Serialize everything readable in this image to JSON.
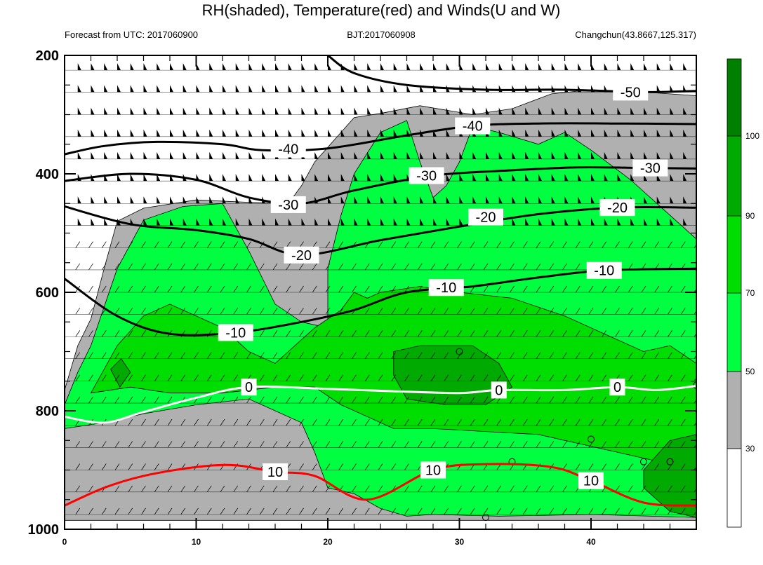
{
  "title": "RH(shaded), Temperature(red) and Winds(U and W)",
  "subtitle_left": "Forecast from UTC: 2017060900",
  "subtitle_center": "BJT:2017060908",
  "subtitle_right": "Changchun(43.8667,125.317)",
  "colors": {
    "rh_30_50": "#b0b0b0",
    "rh_50_70": "#00ff40",
    "rh_70_90": "#00dd00",
    "rh_90_100": "#00aa00",
    "rh_100_plus": "#008000",
    "temperature_below_zero": "#000000",
    "zero_line": "#ffffff",
    "temperature_above_zero": "#ff0000"
  },
  "chart_data": {
    "type": "contour",
    "x_axis": {
      "ticks": [
        0,
        10,
        20,
        30,
        40
      ],
      "range": [
        0,
        48
      ]
    },
    "y_axis": {
      "ticks": [
        "200",
        "400",
        "600",
        "800",
        "1000"
      ],
      "range": [
        200,
        1000
      ],
      "inverted": true
    },
    "colorbar": {
      "ticks": [
        "30",
        "50",
        "70",
        "90",
        "100"
      ]
    },
    "temperature_contours": [
      {
        "value": -50,
        "label": "-50",
        "label_pos": [
          43,
          262
        ],
        "points": [
          [
            20,
            200
          ],
          [
            22,
            230
          ],
          [
            26,
            250
          ],
          [
            32,
            258
          ],
          [
            38,
            258
          ],
          [
            44,
            262
          ],
          [
            48,
            260
          ]
        ]
      },
      {
        "value": -40,
        "label": "-40",
        "label_pos": [
          17,
          358
        ],
        "label2": "-40",
        "label2_pos": [
          31,
          319
        ],
        "points": [
          [
            0,
            367
          ],
          [
            3,
            353
          ],
          [
            7,
            346
          ],
          [
            12,
            350
          ],
          [
            15,
            360
          ],
          [
            20,
            357
          ],
          [
            26,
            335
          ],
          [
            31,
            319
          ],
          [
            36,
            315
          ],
          [
            42,
            315
          ],
          [
            48,
            316
          ]
        ]
      },
      {
        "value": -30,
        "label": "-30",
        "label_pos": [
          17,
          452
        ],
        "label2": "-30",
        "label2_pos": [
          27.5,
          403
        ],
        "label3": "-30",
        "label3_pos": [
          44.5,
          390
        ],
        "points": [
          [
            0,
            412
          ],
          [
            5,
            400
          ],
          [
            10,
            410
          ],
          [
            14,
            440
          ],
          [
            18,
            450
          ],
          [
            22,
            428
          ],
          [
            28,
            403
          ],
          [
            34,
            394
          ],
          [
            39,
            389
          ],
          [
            44,
            390
          ],
          [
            48,
            391
          ]
        ]
      },
      {
        "value": -20,
        "label": "-20",
        "label_pos": [
          18,
          537
        ],
        "label2": "-20",
        "label2_pos": [
          32,
          473
        ],
        "label3": "-20",
        "label3_pos": [
          42,
          457
        ],
        "points": [
          [
            0,
            455
          ],
          [
            5,
            485
          ],
          [
            10,
            495
          ],
          [
            14,
            510
          ],
          [
            18,
            537
          ],
          [
            24,
            512
          ],
          [
            30,
            489
          ],
          [
            36,
            468
          ],
          [
            42,
            457
          ],
          [
            48,
            457
          ]
        ]
      },
      {
        "value": -10,
        "label": "-10",
        "label_pos": [
          13,
          668
        ],
        "label2": "-10",
        "label2_pos": [
          29,
          592
        ],
        "label3": "-10",
        "label3_pos": [
          41,
          563
        ],
        "points": [
          [
            0,
            577
          ],
          [
            4,
            640
          ],
          [
            8,
            670
          ],
          [
            13,
            668
          ],
          [
            18,
            650
          ],
          [
            22,
            630
          ],
          [
            26,
            600
          ],
          [
            31,
            590
          ],
          [
            36,
            575
          ],
          [
            41,
            563
          ],
          [
            48,
            560
          ]
        ]
      },
      {
        "value": 0,
        "label": "0",
        "label_pos": [
          14,
          760
        ],
        "label2": "0",
        "label2_pos": [
          33,
          765
        ],
        "label3": "0",
        "label3_pos": [
          42,
          760
        ],
        "points": [
          [
            0,
            810
          ],
          [
            3,
            820
          ],
          [
            6,
            802
          ],
          [
            10,
            778
          ],
          [
            14,
            760
          ],
          [
            20,
            763
          ],
          [
            25,
            767
          ],
          [
            30,
            770
          ],
          [
            33,
            765
          ],
          [
            38,
            765
          ],
          [
            42,
            760
          ],
          [
            45,
            765
          ],
          [
            48,
            758
          ]
        ]
      },
      {
        "value": 10,
        "label": "10",
        "label_pos": [
          16,
          903
        ],
        "label2": "10",
        "label2_pos": [
          28,
          900
        ],
        "label3": "10",
        "label3_pos": [
          40,
          918
        ],
        "points": [
          [
            0,
            960
          ],
          [
            3,
            930
          ],
          [
            6,
            910
          ],
          [
            10,
            895
          ],
          [
            13,
            892
          ],
          [
            16,
            903
          ],
          [
            19,
            910
          ],
          [
            23,
            950
          ],
          [
            28,
            900
          ],
          [
            32,
            890
          ],
          [
            37,
            895
          ],
          [
            40,
            918
          ],
          [
            44,
            955
          ],
          [
            48,
            960
          ]
        ]
      }
    ],
    "rh_regions": [
      {
        "level": "30-50",
        "points": [
          [
            0,
            765
          ],
          [
            1,
            690
          ],
          [
            2,
            645
          ],
          [
            3,
            560
          ],
          [
            4,
            480
          ],
          [
            6,
            458
          ],
          [
            10,
            444
          ],
          [
            14,
            448
          ],
          [
            17,
            450
          ],
          [
            18,
            420
          ],
          [
            19,
            380
          ],
          [
            21,
            330
          ],
          [
            22,
            305
          ],
          [
            24,
            298
          ],
          [
            27,
            285
          ],
          [
            31,
            300
          ],
          [
            34,
            290
          ],
          [
            37,
            265
          ],
          [
            40,
            258
          ],
          [
            44,
            262
          ],
          [
            48,
            268
          ],
          [
            48,
            985
          ],
          [
            40,
            985
          ],
          [
            30,
            985
          ],
          [
            20,
            985
          ],
          [
            16,
            985
          ],
          [
            10,
            985
          ],
          [
            5,
            985
          ],
          [
            0,
            985
          ]
        ]
      },
      {
        "level": "50-70",
        "points": [
          [
            0,
            790
          ],
          [
            1,
            735
          ],
          [
            2,
            690
          ],
          [
            4,
            560
          ],
          [
            6,
            478
          ],
          [
            9,
            455
          ],
          [
            12,
            450
          ],
          [
            14,
            530
          ],
          [
            16,
            620
          ],
          [
            18,
            650
          ],
          [
            20,
            660
          ],
          [
            20,
            560
          ],
          [
            21,
            470
          ],
          [
            22,
            400
          ],
          [
            24,
            330
          ],
          [
            26,
            310
          ],
          [
            27,
            380
          ],
          [
            28,
            440
          ],
          [
            29,
            420
          ],
          [
            30,
            380
          ],
          [
            31,
            320
          ],
          [
            33,
            330
          ],
          [
            36,
            350
          ],
          [
            38,
            330
          ],
          [
            40,
            360
          ],
          [
            43,
            410
          ],
          [
            46,
            470
          ],
          [
            48,
            510
          ],
          [
            48,
            980
          ],
          [
            40,
            975
          ],
          [
            33,
            978
          ],
          [
            28,
            975
          ],
          [
            26,
            978
          ],
          [
            24,
            965
          ],
          [
            22,
            940
          ],
          [
            20,
            930
          ],
          [
            19,
            870
          ],
          [
            18,
            820
          ],
          [
            16,
            800
          ],
          [
            14,
            780
          ],
          [
            10,
            790
          ],
          [
            6,
            805
          ],
          [
            3,
            820
          ],
          [
            0,
            830
          ]
        ]
      },
      {
        "level": "70-90",
        "points": [
          [
            2,
            770
          ],
          [
            4,
            690
          ],
          [
            6,
            640
          ],
          [
            8,
            620
          ],
          [
            10,
            640
          ],
          [
            12,
            660
          ],
          [
            14,
            700
          ],
          [
            16,
            720
          ],
          [
            17,
            700
          ],
          [
            18,
            680
          ],
          [
            19,
            660
          ],
          [
            21,
            630
          ],
          [
            22,
            600
          ],
          [
            23,
            610
          ],
          [
            24,
            600
          ],
          [
            27,
            590
          ],
          [
            30,
            600
          ],
          [
            34,
            610
          ],
          [
            38,
            640
          ],
          [
            42,
            680
          ],
          [
            44,
            700
          ],
          [
            46,
            690
          ],
          [
            48,
            720
          ],
          [
            48,
            900
          ],
          [
            44,
            880
          ],
          [
            40,
            860
          ],
          [
            36,
            840
          ],
          [
            32,
            835
          ],
          [
            28,
            830
          ],
          [
            25,
            830
          ],
          [
            23,
            810
          ],
          [
            21,
            790
          ],
          [
            19,
            760
          ],
          [
            16,
            760
          ],
          [
            12,
            770
          ],
          [
            8,
            770
          ],
          [
            5,
            760
          ]
        ]
      },
      {
        "level": "90-100",
        "points": [
          [
            25,
            700
          ],
          [
            27,
            690
          ],
          [
            31,
            690
          ],
          [
            33,
            720
          ],
          [
            34,
            760
          ],
          [
            32,
            790
          ],
          [
            29,
            790
          ],
          [
            26,
            780
          ],
          [
            25,
            740
          ]
        ]
      },
      {
        "level": "90-100",
        "points": [
          [
            3.5,
            730
          ],
          [
            4.3,
            712
          ],
          [
            5,
            735
          ],
          [
            4.2,
            760
          ]
        ]
      },
      {
        "level": "90-100",
        "points": [
          [
            44,
            900
          ],
          [
            46,
            850
          ],
          [
            48,
            840
          ],
          [
            48,
            980
          ],
          [
            46,
            970
          ],
          [
            44,
            930
          ]
        ]
      }
    ],
    "wind_rows_hpa": [
      225,
      262,
      300,
      337,
      375,
      412,
      450,
      487,
      525,
      562,
      600,
      637,
      675,
      712,
      750,
      787,
      825,
      862,
      900,
      937,
      975
    ],
    "open_circles": [
      [
        30,
        700
      ],
      [
        40,
        848
      ],
      [
        44,
        886
      ],
      [
        46,
        886
      ],
      [
        34,
        886
      ],
      [
        32,
        980
      ],
      [
        48,
        757
      ]
    ]
  }
}
